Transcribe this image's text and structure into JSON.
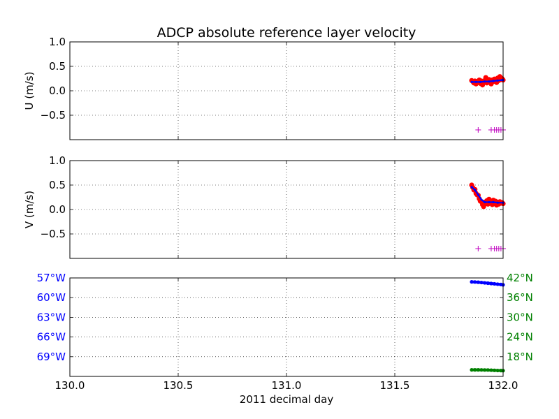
{
  "figure": {
    "title": "ADCP absolute reference layer velocity",
    "xlabel": "2011 decimal day",
    "colors": {
      "measured": "#ff0000",
      "smoothed": "#0000ff",
      "flag": "#bf00bf",
      "longitude": "#0000ff",
      "latitude": "#008000",
      "axis": "#000000"
    }
  },
  "chart_data": [
    {
      "type": "scatter",
      "panel": "u",
      "ylabel": "U (m/s)",
      "xlim": [
        130.0,
        132.0
      ],
      "ylim": [
        -1.0,
        1.0
      ],
      "x_ticks": [
        130.0,
        130.5,
        131.0,
        131.5,
        132.0
      ],
      "y_ticks": [
        1.0,
        0.5,
        0.0,
        -0.5
      ],
      "y_tick_labels": [
        "1.0",
        "0.5",
        "0.0",
        "−0.5"
      ],
      "grid": true,
      "series": [
        {
          "role": "measured",
          "x": [
            131.855,
            131.86,
            131.865,
            131.87,
            131.875,
            131.88,
            131.885,
            131.89,
            131.895,
            131.9,
            131.905,
            131.91,
            131.915,
            131.92,
            131.925,
            131.93,
            131.935,
            131.94,
            131.945,
            131.95,
            131.955,
            131.96,
            131.965,
            131.97,
            131.975,
            131.98,
            131.985,
            131.99,
            131.995,
            132.0
          ],
          "values": [
            0.21,
            0.19,
            0.16,
            0.2,
            0.14,
            0.19,
            0.18,
            0.22,
            0.15,
            0.2,
            0.12,
            0.17,
            0.21,
            0.27,
            0.16,
            0.19,
            0.23,
            0.18,
            0.14,
            0.22,
            0.19,
            0.24,
            0.2,
            0.17,
            0.26,
            0.21,
            0.29,
            0.23,
            0.25,
            0.22
          ]
        },
        {
          "role": "smoothed",
          "x": [
            131.855,
            131.875,
            131.895,
            131.915,
            131.935,
            131.955,
            131.975,
            131.995,
            132.0
          ],
          "values": [
            0.18,
            0.18,
            0.18,
            0.19,
            0.19,
            0.2,
            0.21,
            0.22,
            0.22
          ]
        },
        {
          "role": "flag",
          "marker": "+",
          "x": [
            131.885,
            131.945,
            131.96,
            131.97,
            131.98,
            131.99,
            132.0
          ],
          "values": [
            -0.8,
            -0.8,
            -0.8,
            -0.8,
            -0.8,
            -0.8,
            -0.8
          ]
        }
      ]
    },
    {
      "type": "scatter",
      "panel": "v",
      "ylabel": "V (m/s)",
      "xlim": [
        130.0,
        132.0
      ],
      "ylim": [
        -1.0,
        1.0
      ],
      "x_ticks": [
        130.0,
        130.5,
        131.0,
        131.5,
        132.0
      ],
      "y_ticks": [
        1.0,
        0.5,
        0.0,
        -0.5
      ],
      "y_tick_labels": [
        "1.0",
        "0.5",
        "0.0",
        "−0.5"
      ],
      "grid": true,
      "series": [
        {
          "role": "measured",
          "x": [
            131.855,
            131.86,
            131.865,
            131.87,
            131.875,
            131.88,
            131.885,
            131.89,
            131.895,
            131.9,
            131.905,
            131.91,
            131.915,
            131.92,
            131.925,
            131.93,
            131.935,
            131.94,
            131.945,
            131.95,
            131.955,
            131.96,
            131.965,
            131.97,
            131.975,
            131.98,
            131.985,
            131.99,
            131.995,
            132.0
          ],
          "values": [
            0.5,
            0.45,
            0.4,
            0.41,
            0.33,
            0.3,
            0.29,
            0.22,
            0.17,
            0.16,
            0.1,
            0.06,
            0.15,
            0.12,
            0.18,
            0.11,
            0.21,
            0.13,
            0.16,
            0.1,
            0.19,
            0.12,
            0.17,
            0.09,
            0.15,
            0.11,
            0.16,
            0.13,
            0.14,
            0.12
          ]
        },
        {
          "role": "smoothed",
          "x": [
            131.855,
            131.87,
            131.885,
            131.9,
            131.915,
            131.935,
            131.955,
            131.975,
            132.0
          ],
          "values": [
            0.46,
            0.4,
            0.3,
            0.2,
            0.15,
            0.15,
            0.15,
            0.14,
            0.14
          ]
        },
        {
          "role": "flag",
          "marker": "+",
          "x": [
            131.885,
            131.945,
            131.96,
            131.97,
            131.98,
            131.99,
            132.0
          ],
          "values": [
            -0.8,
            -0.8,
            -0.8,
            -0.8,
            -0.8,
            -0.8,
            -0.8
          ]
        }
      ]
    },
    {
      "type": "scatter",
      "panel": "position",
      "xlim": [
        130.0,
        132.0
      ],
      "x_ticks": [
        130.0,
        130.5,
        131.0,
        131.5,
        132.0
      ],
      "x_tick_labels": [
        "130.0",
        "130.5",
        "131.0",
        "131.5",
        "132.0"
      ],
      "grid": true,
      "left_axis": {
        "quantity": "longitude",
        "ylim": [
          -72,
          -57
        ],
        "ticks": [
          -57,
          -60,
          -63,
          -66,
          -69
        ],
        "tick_labels": [
          "57°W",
          "60°W",
          "63°W",
          "66°W",
          "69°W"
        ]
      },
      "right_axis": {
        "quantity": "latitude",
        "ylim": [
          12,
          42
        ],
        "ticks": [
          42,
          36,
          30,
          24,
          18
        ],
        "tick_labels": [
          "42°N",
          "36°N",
          "30°N",
          "24°N",
          "18°N"
        ]
      },
      "series": [
        {
          "role": "longitude",
          "axis": "left",
          "x": [
            131.855,
            131.87,
            131.885,
            131.9,
            131.915,
            131.93,
            131.945,
            131.96,
            131.975,
            131.99,
            132.0
          ],
          "values": [
            -57.6,
            -57.62,
            -57.65,
            -57.7,
            -57.75,
            -57.8,
            -57.85,
            -57.9,
            -57.95,
            -58.0,
            -58.05
          ]
        },
        {
          "role": "latitude",
          "axis": "right",
          "x": [
            131.855,
            131.87,
            131.885,
            131.9,
            131.915,
            131.93,
            131.945,
            131.96,
            131.975,
            131.99,
            132.0
          ],
          "values": [
            14.0,
            14.0,
            14.0,
            13.98,
            13.96,
            13.95,
            13.9,
            13.85,
            13.8,
            13.78,
            13.75
          ]
        }
      ]
    }
  ]
}
